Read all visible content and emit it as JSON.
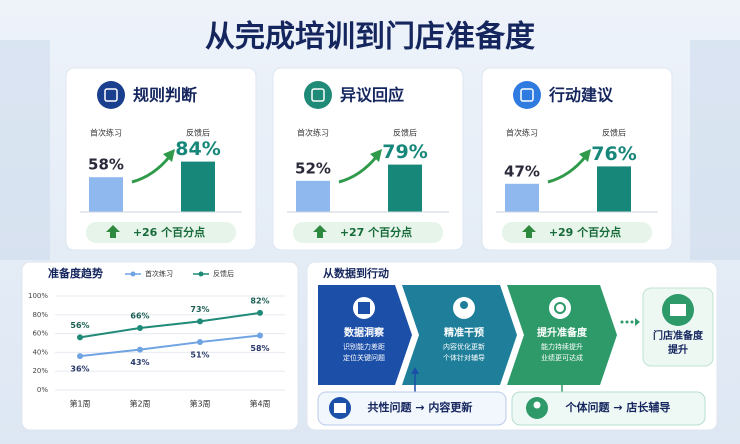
{
  "header": {
    "title": "从完成培训到门店准备度"
  },
  "chart_data": [
    {
      "type": "bar",
      "title": "规则判断",
      "categories": [
        "首次练习",
        "反馈后"
      ],
      "values": [
        58,
        84
      ],
      "value_labels": [
        "58%",
        "84%"
      ],
      "colors": [
        "#8fb9ee",
        "#17877a"
      ],
      "annotation": "+26 个百分点"
    },
    {
      "type": "bar",
      "title": "异议回应",
      "categories": [
        "首次练习",
        "反馈后"
      ],
      "values": [
        52,
        79
      ],
      "value_labels": [
        "52%",
        "79%"
      ],
      "colors": [
        "#8fb9ee",
        "#17877a"
      ],
      "annotation": "+27 个百分点"
    },
    {
      "type": "bar",
      "title": "行动建议",
      "categories": [
        "首次练习",
        "反馈后"
      ],
      "values": [
        47,
        76
      ],
      "value_labels": [
        "47%",
        "76%"
      ],
      "colors": [
        "#8fb9ee",
        "#17877a"
      ],
      "annotation": "+29 个百分点"
    },
    {
      "type": "line",
      "title": "准备度趋势",
      "categories": [
        "第1周",
        "第2周",
        "第3周",
        "第4周"
      ],
      "series": [
        {
          "name": "首次练习",
          "color": "#6fa3e2",
          "values": [
            36,
            43,
            51,
            58
          ],
          "value_labels": [
            "36%",
            "43%",
            "51%",
            "58%"
          ]
        },
        {
          "name": "反馈后",
          "color": "#1f8a77",
          "values": [
            56,
            66,
            73,
            82
          ],
          "value_labels": [
            "56%",
            "66%",
            "73%",
            "82%"
          ]
        }
      ],
      "ylim": [
        0,
        100
      ],
      "yticks": [
        {
          "value": 0,
          "label": "0%"
        },
        {
          "value": 20,
          "label": "20%"
        },
        {
          "value": 40,
          "label": "40%"
        },
        {
          "value": 60,
          "label": "60%"
        },
        {
          "value": 80,
          "label": "80%"
        },
        {
          "value": 100,
          "label": "100%"
        }
      ],
      "grid": true
    }
  ],
  "flow": {
    "title": "从数据到行动",
    "steps": [
      {
        "title": "数据洞察",
        "desc": [
          "识别能力差距",
          "定位关键问题"
        ]
      },
      {
        "title": "精准干预",
        "desc": [
          "内容优化更新",
          "个体针对辅导"
        ]
      },
      {
        "title": "提升准备度",
        "desc": [
          "能力持续提升",
          "业绩更可达成"
        ]
      }
    ],
    "end": [
      "门店准备度",
      "提升"
    ],
    "notes": [
      "共性问题 → 内容更新",
      "个体问题 → 店长辅导"
    ]
  }
}
